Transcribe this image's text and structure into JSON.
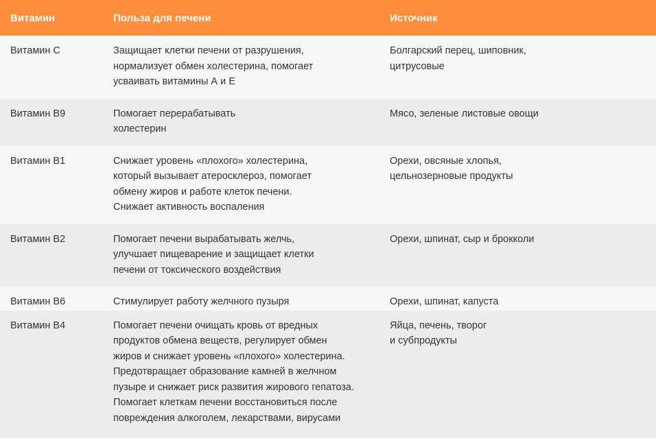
{
  "table": {
    "headers": [
      "Витамин",
      "Польза для печени",
      "Источник"
    ],
    "rows": [
      {
        "vitamin": "Витамин С",
        "benefit": "Защищает клетки печени от разрушения,\nнормализует обмен холестерина, помогает\nусваивать витамины А и Е",
        "source": "Болгарский перец, шиповник,\nцитрусовые"
      },
      {
        "vitamin": "Витамин В9",
        "benefit": "Помогает перерабатывать\nхолестерин",
        "source": "Мясо, зеленые листовые овощи"
      },
      {
        "vitamin": "Витамин В1",
        "benefit": "Снижает уровень «плохого» холестерина,\nкоторый вызывает атеросклероз, помогает\nобмену жиров и работе клеток печени.\nСнижает активность воспаления",
        "source": "Орехи, овсяные хлопья,\nцельнозерновые продукты"
      },
      {
        "vitamin": "Витамин В2",
        "benefit": "Помогает печени вырабатывать желчь,\nулучшает пищеварение и защищает клетки\nпечени от токсического воздействия",
        "source": "Орехи, шпинат, сыр и брокколи"
      },
      {
        "vitamin": "Витамин В6",
        "benefit": "Стимулирует работу желчного пузыря",
        "source": "Орехи, шпинат, капуста"
      },
      {
        "vitamin": "Витамин В4",
        "benefit": "Помогает печени очищать кровь от вредных\nпродуктов обмена веществ, регулирует обмен\nжиров и снижает уровень «плохого» холестерина.\nПредотвращает образование камней в желчном\nпузыре и снижает риск развития жирового гепатоза.\nПомогает клеткам печени восстановиться после\nповреждения алкоголем, лекарствами, вирусами",
        "source": "Яйца, печень, творог\nи субпродукты"
      }
    ]
  },
  "colors": {
    "header": "#fe8d3c",
    "row_light": "#f7f7f7",
    "row_dark": "#ececec"
  }
}
